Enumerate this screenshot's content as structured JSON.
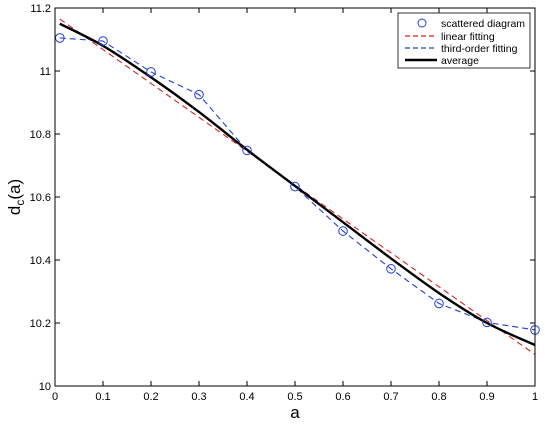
{
  "chart_data": {
    "type": "line",
    "xlabel": "a",
    "ylabel_main": "d",
    "ylabel_sub": "c",
    "ylabel_tail": "(a)",
    "xlim": [
      0,
      1
    ],
    "ylim": [
      10,
      11.2
    ],
    "xticks": [
      "0",
      "0.1",
      "0.2",
      "0.3",
      "0.4",
      "0.5",
      "0.6",
      "0.7",
      "0.8",
      "0.9",
      "1"
    ],
    "yticks": [
      "10",
      "10.2",
      "10.4",
      "10.6",
      "10.8",
      "11",
      "11.2"
    ],
    "grid": false,
    "legend_position": "top-right",
    "series": [
      {
        "name": "scattered diagram",
        "style": "markers",
        "color": "#1f3fd8",
        "x": [
          0.01,
          0.1,
          0.2,
          0.3,
          0.4,
          0.5,
          0.6,
          0.7,
          0.8,
          0.9,
          1.0
        ],
        "y": [
          11.105,
          11.095,
          10.997,
          10.925,
          10.748,
          10.633,
          10.492,
          10.372,
          10.262,
          10.202,
          10.178
        ]
      },
      {
        "name": "linear fitting",
        "style": "dashed",
        "color": "#e02020",
        "x": [
          0.01,
          1.0
        ],
        "y": [
          11.165,
          10.1
        ]
      },
      {
        "name": "third-order fitting",
        "style": "dashed",
        "color": "#1f3fd8",
        "x": [
          0.01,
          0.1,
          0.2,
          0.3,
          0.4,
          0.5,
          0.6,
          0.7,
          0.8,
          0.9,
          1.0
        ],
        "y": [
          11.105,
          11.095,
          10.997,
          10.925,
          10.748,
          10.633,
          10.492,
          10.372,
          10.262,
          10.202,
          10.178
        ]
      },
      {
        "name": "average",
        "style": "solid",
        "color": "#000000",
        "x": [
          0.01,
          0.1,
          0.2,
          0.3,
          0.4,
          0.5,
          0.6,
          0.7,
          0.8,
          0.9,
          1.0
        ],
        "y": [
          11.15,
          11.08,
          10.98,
          10.87,
          10.75,
          10.635,
          10.52,
          10.405,
          10.295,
          10.2,
          10.13
        ]
      }
    ]
  }
}
